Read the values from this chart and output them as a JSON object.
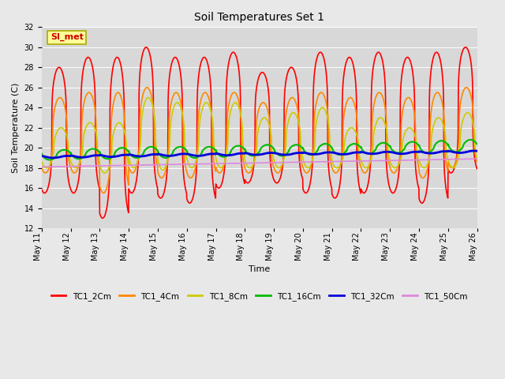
{
  "title": "Soil Temperatures Set 1",
  "xlabel": "Time",
  "ylabel": "Soil Temperature (C)",
  "ylim": [
    12,
    32
  ],
  "yticks": [
    12,
    14,
    16,
    18,
    20,
    22,
    24,
    26,
    28,
    30,
    32
  ],
  "x_tick_days": [
    11,
    12,
    13,
    14,
    15,
    16,
    17,
    18,
    19,
    20,
    21,
    22,
    23,
    24,
    25,
    26
  ],
  "series_colors": [
    "#ff0000",
    "#ff8800",
    "#cccc00",
    "#00bb00",
    "#0000dd",
    "#dd88dd"
  ],
  "series_labels": [
    "TC1_2Cm",
    "TC1_4Cm",
    "TC1_8Cm",
    "TC1_16Cm",
    "TC1_32Cm",
    "TC1_50Cm"
  ],
  "series_linewidths": [
    1.2,
    1.2,
    1.2,
    1.5,
    2.0,
    1.2
  ],
  "bg_color": "#e8e8e8",
  "plot_bg_color": "#d8d8d8",
  "annotation_text": "SI_met",
  "annotation_color": "#cc0000",
  "annotation_bg": "#ffff99",
  "annotation_border": "#aaaa00",
  "num_days": 15,
  "steps_per_day": 144,
  "grid_color": "#ffffff",
  "font_family": "DejaVu Sans",
  "title_fontsize": 10,
  "axis_fontsize": 8,
  "tick_fontsize": 7
}
